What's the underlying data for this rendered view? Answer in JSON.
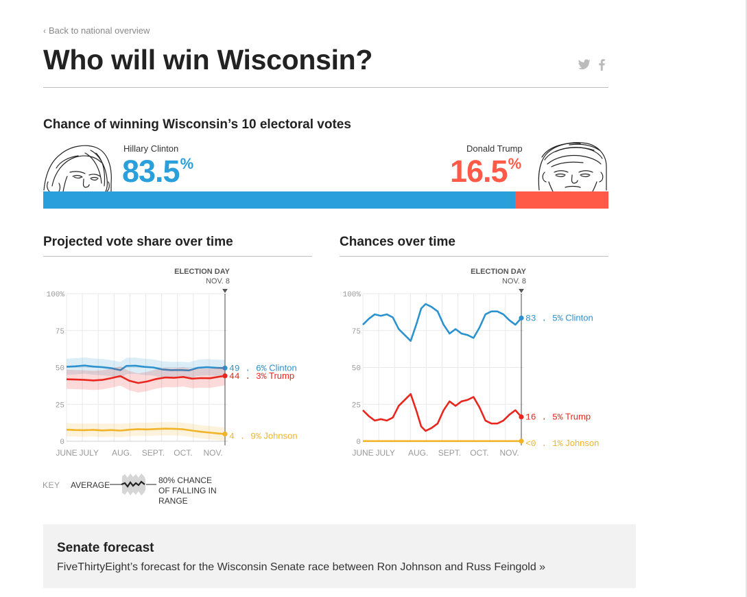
{
  "nav": {
    "back_label": "Back to national overview"
  },
  "header": {
    "title": "Who will win Wisconsin?"
  },
  "summary": {
    "heading": "Chance of winning Wisconsin’s 10 electoral votes",
    "clinton": {
      "name": "Hillary Clinton",
      "pct": "83.5",
      "pct_value": 83.5,
      "color": "#29a0db"
    },
    "trump": {
      "name": "Donald Trump",
      "pct": "16.5",
      "pct_value": 16.5,
      "color": "#ff5a47"
    },
    "pct_sign": "%"
  },
  "colors": {
    "clinton": "#2b92cf",
    "trump": "#e8261d",
    "johnson": "#f1b428",
    "grid": "#e8e8e8",
    "axis": "#444"
  },
  "chart_data": [
    {
      "type": "line",
      "title": "Projected vote share over time",
      "ylim": [
        0,
        100
      ],
      "y_ticks": [
        0,
        25,
        50,
        75,
        100
      ],
      "y_tick_labels": [
        "0",
        "25",
        "50",
        "75",
        "100%"
      ],
      "x_domain": [
        0,
        5.3
      ],
      "x_ticks": [
        0,
        0.75,
        1.85,
        2.9,
        3.9,
        4.9
      ],
      "x_tick_labels": [
        "JUNE",
        "JULY",
        "AUG.",
        "SEPT.",
        "OCT.",
        "NOV."
      ],
      "election_day": {
        "x": 5.3,
        "label": "ELECTION DAY",
        "date": "NOV. 8"
      },
      "series": [
        {
          "name": "Clinton",
          "color_key": "clinton",
          "band": 5.5,
          "x": [
            0,
            0.3,
            0.6,
            0.9,
            1.2,
            1.5,
            1.8,
            2.0,
            2.3,
            2.6,
            2.9,
            3.2,
            3.5,
            3.8,
            4.1,
            4.4,
            4.7,
            5.0,
            5.3
          ],
          "values": [
            50.5,
            50.8,
            51.3,
            50.6,
            50.2,
            49.5,
            48.2,
            51.0,
            51.2,
            50.4,
            50.0,
            48.7,
            48.2,
            48.3,
            48.0,
            49.8,
            50.2,
            49.8,
            49.6
          ],
          "end_value": "49 . 6%",
          "end_name": "Clinton"
        },
        {
          "name": "Trump",
          "color_key": "trump",
          "band": 6.5,
          "x": [
            0,
            0.3,
            0.6,
            0.9,
            1.2,
            1.5,
            1.8,
            2.1,
            2.4,
            2.7,
            3.0,
            3.3,
            3.6,
            3.9,
            4.2,
            4.5,
            4.8,
            5.1,
            5.3
          ],
          "values": [
            42.0,
            41.8,
            41.6,
            41.2,
            41.6,
            42.8,
            44.2,
            41.0,
            39.5,
            40.5,
            42.2,
            43.2,
            43.0,
            43.6,
            42.4,
            42.8,
            42.7,
            43.7,
            44.3
          ],
          "end_value": "44 . 3%",
          "end_name": "Trump"
        },
        {
          "name": "Johnson",
          "color_key": "johnson",
          "band": 4.5,
          "x": [
            0,
            0.3,
            0.6,
            0.9,
            1.2,
            1.5,
            1.8,
            2.1,
            2.4,
            2.7,
            3.0,
            3.3,
            3.6,
            3.9,
            4.2,
            4.5,
            4.8,
            5.1,
            5.3
          ],
          "values": [
            7.8,
            7.6,
            7.5,
            7.7,
            7.3,
            7.6,
            7.2,
            7.8,
            8.2,
            8.0,
            8.3,
            8.5,
            8.4,
            8.1,
            7.2,
            6.4,
            5.8,
            5.2,
            4.9
          ],
          "end_value": "4 . 9%",
          "end_name": "Johnson"
        }
      ]
    },
    {
      "type": "line",
      "title": "Chances over time",
      "ylim": [
        0,
        100
      ],
      "y_ticks": [
        0,
        25,
        50,
        75,
        100
      ],
      "y_tick_labels": [
        "0",
        "25",
        "50",
        "75",
        "100%"
      ],
      "x_domain": [
        0,
        5.3
      ],
      "x_ticks": [
        0,
        0.75,
        1.85,
        2.9,
        3.9,
        4.9
      ],
      "x_tick_labels": [
        "JUNE",
        "JULY",
        "AUG.",
        "SEPT.",
        "OCT.",
        "NOV."
      ],
      "election_day": {
        "x": 5.3,
        "label": "ELECTION DAY",
        "date": "NOV. 8"
      },
      "series": [
        {
          "name": "Clinton",
          "color_key": "clinton",
          "x": [
            0,
            0.2,
            0.4,
            0.6,
            0.8,
            1.0,
            1.2,
            1.4,
            1.6,
            1.8,
            1.95,
            2.1,
            2.3,
            2.5,
            2.7,
            2.9,
            3.1,
            3.3,
            3.5,
            3.7,
            3.9,
            4.1,
            4.3,
            4.5,
            4.7,
            4.9,
            5.1,
            5.3
          ],
          "values": [
            79,
            83,
            86,
            85,
            86,
            84,
            76,
            72,
            68,
            80,
            90,
            93,
            91,
            88,
            79,
            73,
            76,
            73,
            72,
            70,
            77,
            86,
            88,
            88,
            86,
            82,
            79,
            83.5
          ],
          "end_value": "83 . 5%",
          "end_name": "Clinton"
        },
        {
          "name": "Trump",
          "color_key": "trump",
          "x": [
            0,
            0.2,
            0.4,
            0.6,
            0.8,
            1.0,
            1.2,
            1.4,
            1.6,
            1.8,
            1.95,
            2.1,
            2.3,
            2.5,
            2.7,
            2.9,
            3.1,
            3.3,
            3.5,
            3.7,
            3.9,
            4.1,
            4.3,
            4.5,
            4.7,
            4.9,
            5.1,
            5.3
          ],
          "values": [
            21,
            17,
            14,
            15,
            14,
            16,
            24,
            28,
            32,
            20,
            10,
            7,
            9,
            12,
            21,
            27,
            24,
            27,
            28,
            30,
            23,
            14,
            12,
            12,
            14,
            18,
            21,
            16.5
          ],
          "end_value": "16 . 5%",
          "end_name": "Trump"
        },
        {
          "name": "Johnson",
          "color_key": "johnson",
          "x": [
            0,
            5.3
          ],
          "values": [
            0.1,
            0.1
          ],
          "end_value": "<0 . 1%",
          "end_name": "Johnson"
        }
      ]
    }
  ],
  "key": {
    "label": "KEY",
    "average": "AVERAGE",
    "range": "80% CHANCE OF FALLING IN RANGE"
  },
  "senate": {
    "title": "Senate forecast",
    "description": "FiveThirtyEight’s forecast for the Wisconsin Senate race between Ron Johnson and Russ Feingold »"
  }
}
